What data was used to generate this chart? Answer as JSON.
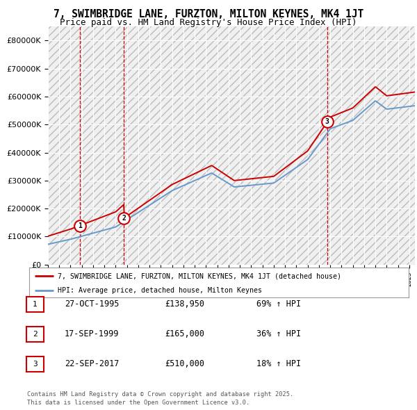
{
  "title": "7, SWIMBRIDGE LANE, FURZTON, MILTON KEYNES, MK4 1JT",
  "subtitle": "Price paid vs. HM Land Registry's House Price Index (HPI)",
  "legend_line1": "7, SWIMBRIDGE LANE, FURZTON, MILTON KEYNES, MK4 1JT (detached house)",
  "legend_line2": "HPI: Average price, detached house, Milton Keynes",
  "footer_line1": "Contains HM Land Registry data © Crown copyright and database right 2025.",
  "footer_line2": "This data is licensed under the Open Government Licence v3.0.",
  "transaction_label1": "1",
  "transaction_date1": "27-OCT-1995",
  "transaction_price1": "£138,950",
  "transaction_hpi1": "69% ↑ HPI",
  "transaction_label2": "2",
  "transaction_date2": "17-SEP-1999",
  "transaction_price2": "£165,000",
  "transaction_hpi2": "36% ↑ HPI",
  "transaction_label3": "3",
  "transaction_date3": "22-SEP-2017",
  "transaction_price3": "£510,000",
  "transaction_hpi3": "18% ↑ HPI",
  "sale_dates": [
    1995.82,
    1999.71,
    2017.72
  ],
  "sale_prices": [
    138950,
    165000,
    510000
  ],
  "red_color": "#cc0000",
  "blue_color": "#6699cc",
  "bg_color": "#ffffff",
  "plot_bg_color": "#f0f0f0",
  "grid_color": "#ffffff",
  "ylim_min": 0,
  "ylim_max": 850000,
  "xlim_min": 1993,
  "xlim_max": 2025.5
}
